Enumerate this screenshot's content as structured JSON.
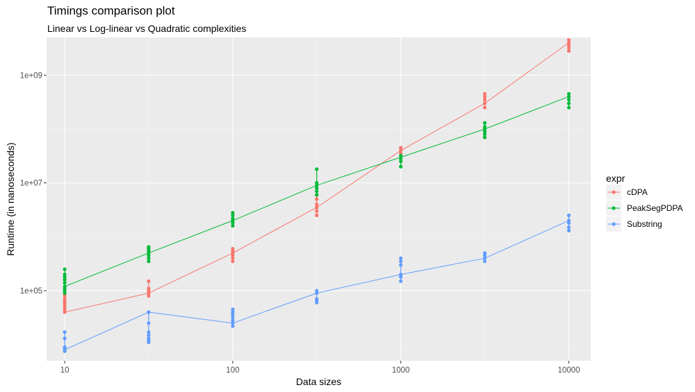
{
  "chart_data": {
    "type": "line",
    "title": "Timings comparison plot",
    "subtitle": "Linear vs Log-linear vs Quadratic complexities",
    "xlabel": "Data sizes",
    "ylabel": "Runtime (in nanoseconds)",
    "x_scale": "log10",
    "y_scale": "log10",
    "xlim": [
      7.8,
      13500
    ],
    "ylim": [
      5000,
      5000000000
    ],
    "x_ticks": [
      {
        "value": 10,
        "label": "10"
      },
      {
        "value": 100,
        "label": "100"
      },
      {
        "value": 1000,
        "label": "1000"
      },
      {
        "value": 10000,
        "label": "10000"
      }
    ],
    "y_ticks": [
      {
        "value": 100000,
        "label": "1e+05"
      },
      {
        "value": 10000000,
        "label": "1e+07"
      },
      {
        "value": 1000000000,
        "label": "1e+09"
      }
    ],
    "grid": true,
    "legend": {
      "title": "expr",
      "position": "right"
    },
    "x": [
      10,
      31.6,
      100,
      316,
      1000,
      3160,
      10000
    ],
    "series": [
      {
        "name": "cDPA",
        "color": "#F8766D",
        "line": [
          40000,
          90000,
          500000,
          3500000,
          40000000,
          300000000,
          4000000000
        ],
        "points": [
          [
            10,
            [
              40000,
              45000,
              50000,
              55000,
              60000,
              65000,
              70000,
              80000,
              90000
            ]
          ],
          [
            31.6,
            [
              80000,
              90000,
              100000,
              110000,
              150000
            ]
          ],
          [
            100,
            [
              350000,
              400000,
              450000,
              500000,
              550000,
              600000
            ]
          ],
          [
            316,
            [
              2500000,
              3000000,
              3500000,
              4000000,
              5000000,
              6000000
            ]
          ],
          [
            1000,
            [
              35000000,
              40000000,
              45000000
            ]
          ],
          [
            3160,
            [
              250000000,
              300000000,
              350000000,
              400000000,
              450000000
            ]
          ],
          [
            10000,
            [
              2800000000,
              3200000000,
              3600000000,
              4000000000,
              4500000000
            ]
          ]
        ]
      },
      {
        "name": "PeakSegPDPA",
        "color": "#00BA38",
        "line": [
          120000,
          500000,
          2000000,
          9000000,
          30000000,
          100000000,
          400000000
        ],
        "points": [
          [
            10,
            [
              90000,
              100000,
              110000,
              120000,
              140000,
              160000,
              180000,
              200000,
              250000
            ]
          ],
          [
            31.6,
            [
              350000,
              400000,
              450000,
              500000,
              550000,
              600000,
              650000
            ]
          ],
          [
            100,
            [
              1600000,
              1800000,
              2000000,
              2200000,
              2500000,
              2800000
            ]
          ],
          [
            316,
            [
              6000000,
              7000000,
              8000000,
              9000000,
              10000000,
              18000000
            ]
          ],
          [
            1000,
            [
              20000000,
              25000000,
              28000000,
              32000000
            ]
          ],
          [
            3160,
            [
              70000000,
              80000000,
              90000000,
              100000000,
              110000000,
              130000000
            ]
          ],
          [
            10000,
            [
              250000000,
              300000000,
              350000000,
              400000000,
              450000000
            ]
          ]
        ]
      },
      {
        "name": "Substring",
        "color": "#619CFF",
        "line": [
          8000,
          40000,
          25000,
          90000,
          200000,
          400000,
          2000000
        ],
        "points": [
          [
            10,
            [
              7500,
              8000,
              8500,
              9000,
              13000,
              17000
            ]
          ],
          [
            31.6,
            [
              11000,
              12000,
              13000,
              15000,
              17000,
              25000,
              40000
            ]
          ],
          [
            100,
            [
              22000,
              25000,
              28000,
              32000,
              36000,
              40000,
              45000
            ]
          ],
          [
            316,
            [
              60000,
              65000,
              70000,
              90000,
              100000
            ]
          ],
          [
            1000,
            [
              150000,
              180000,
              200000,
              300000,
              350000,
              400000
            ]
          ],
          [
            3160,
            [
              350000,
              400000,
              450000,
              500000
            ]
          ],
          [
            10000,
            [
              1300000,
              1500000,
              1800000,
              2000000,
              2500000
            ]
          ]
        ]
      }
    ]
  }
}
